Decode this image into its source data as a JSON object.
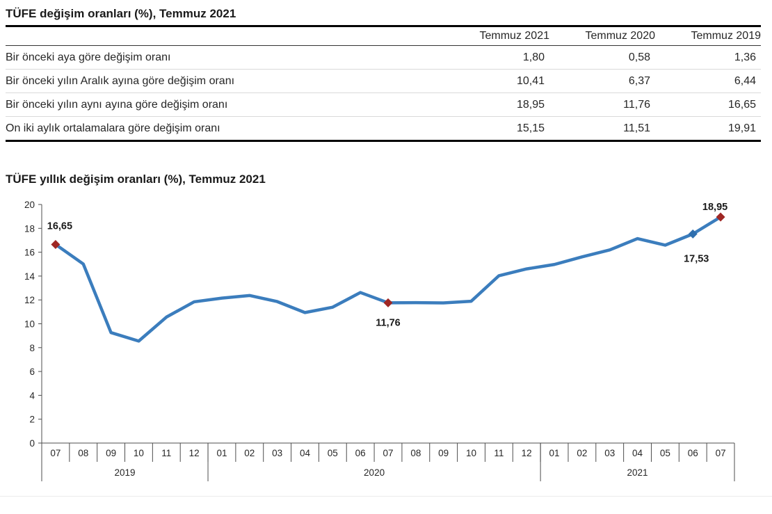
{
  "table": {
    "title": "TÜFE değişim oranları (%), Temmuz 2021",
    "columns": [
      "Temmuz 2021",
      "Temmuz 2020",
      "Temmuz 2019"
    ],
    "rows": [
      {
        "label": "Bir önceki aya göre değişim oranı",
        "values": [
          "1,80",
          "0,58",
          "1,36"
        ]
      },
      {
        "label": "Bir önceki yılın Aralık ayına göre değişim oranı",
        "values": [
          "10,41",
          "6,37",
          "6,44"
        ]
      },
      {
        "label": "Bir önceki yılın aynı ayına göre değişim oranı",
        "values": [
          "18,95",
          "11,76",
          "16,65"
        ]
      },
      {
        "label": "On iki aylık ortalamalara göre değişim oranı",
        "values": [
          "15,15",
          "11,51",
          "19,91"
        ]
      }
    ]
  },
  "chart": {
    "title": "TÜFE yıllık değişim oranları (%), Temmuz 2021"
  },
  "chart_data": {
    "type": "line",
    "title": "TÜFE yıllık değişim oranları (%), Temmuz 2021",
    "x": [
      "07",
      "08",
      "09",
      "10",
      "11",
      "12",
      "01",
      "02",
      "03",
      "04",
      "05",
      "06",
      "07",
      "08",
      "09",
      "10",
      "11",
      "12",
      "01",
      "02",
      "03",
      "04",
      "05",
      "06",
      "07"
    ],
    "year_groups": [
      {
        "label": "2019",
        "months": 6
      },
      {
        "label": "2020",
        "months": 12
      },
      {
        "label": "2021",
        "months": 7
      }
    ],
    "values": [
      16.65,
      15.01,
      9.26,
      8.55,
      10.56,
      11.84,
      12.15,
      12.37,
      11.86,
      10.94,
      11.39,
      12.62,
      11.76,
      11.77,
      11.75,
      11.89,
      14.03,
      14.6,
      14.97,
      15.61,
      16.19,
      17.14,
      16.59,
      17.53,
      18.95
    ],
    "ylim": [
      0,
      20
    ],
    "ytick_step": 2,
    "grid": false,
    "legend": false,
    "line_color": "#3B7DBD",
    "axis_color": "#4d4d4d",
    "annotations": [
      {
        "index": 0,
        "text": "16,65",
        "marker": "diamond",
        "color": "#9F2724",
        "position": "above"
      },
      {
        "index": 12,
        "text": "11,76",
        "marker": "diamond",
        "color": "#9F2724",
        "position": "below"
      },
      {
        "index": 23,
        "text": "17,53",
        "marker": "diamond",
        "color": "#2F6FAE",
        "position": "below"
      },
      {
        "index": 24,
        "text": "18,95",
        "marker": "diamond",
        "color": "#9F2724",
        "position": "above"
      }
    ]
  }
}
